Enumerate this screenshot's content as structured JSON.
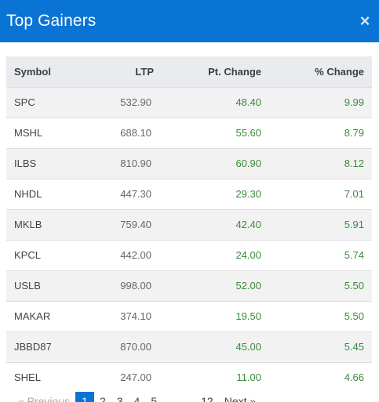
{
  "modal": {
    "title": "Top Gainers",
    "close_label": "×"
  },
  "table": {
    "headers": [
      "Symbol",
      "LTP",
      "Pt. Change",
      "% Change"
    ],
    "rows": [
      {
        "symbol": "SPC",
        "ltp": "532.90",
        "pt_change": "48.40",
        "pct_change": "9.99"
      },
      {
        "symbol": "MSHL",
        "ltp": "688.10",
        "pt_change": "55.60",
        "pct_change": "8.79"
      },
      {
        "symbol": "ILBS",
        "ltp": "810.90",
        "pt_change": "60.90",
        "pct_change": "8.12"
      },
      {
        "symbol": "NHDL",
        "ltp": "447.30",
        "pt_change": "29.30",
        "pct_change": "7.01"
      },
      {
        "symbol": "MKLB",
        "ltp": "759.40",
        "pt_change": "42.40",
        "pct_change": "5.91"
      },
      {
        "symbol": "KPCL",
        "ltp": "442.00",
        "pt_change": "24.00",
        "pct_change": "5.74"
      },
      {
        "symbol": "USLB",
        "ltp": "998.00",
        "pt_change": "52.00",
        "pct_change": "5.50"
      },
      {
        "symbol": "MAKAR",
        "ltp": "374.10",
        "pt_change": "19.50",
        "pct_change": "5.50"
      },
      {
        "symbol": "JBBD87",
        "ltp": "870.00",
        "pt_change": "45.00",
        "pct_change": "5.45"
      },
      {
        "symbol": "SHEL",
        "ltp": "247.00",
        "pt_change": "11.00",
        "pct_change": "4.66"
      }
    ]
  },
  "pagination": {
    "previous": "« Previous",
    "pages": [
      "1",
      "2",
      "3",
      "4",
      "5"
    ],
    "ellipsis": "…",
    "last": "12",
    "next": "Next »",
    "current": "1"
  },
  "colors": {
    "header_bg": "#0a74d4",
    "positive": "#3a8a3a"
  }
}
